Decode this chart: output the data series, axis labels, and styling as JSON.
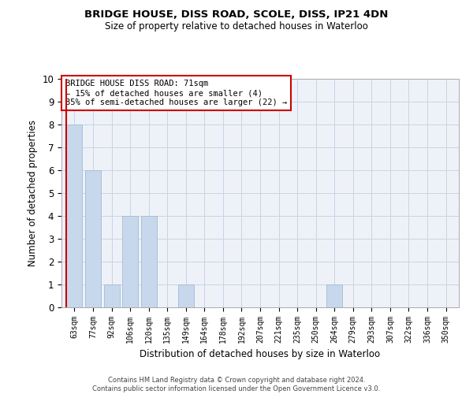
{
  "title": "BRIDGE HOUSE, DISS ROAD, SCOLE, DISS, IP21 4DN",
  "subtitle": "Size of property relative to detached houses in Waterloo",
  "xlabel": "Distribution of detached houses by size in Waterloo",
  "ylabel": "Number of detached properties",
  "categories": [
    "63sqm",
    "77sqm",
    "92sqm",
    "106sqm",
    "120sqm",
    "135sqm",
    "149sqm",
    "164sqm",
    "178sqm",
    "192sqm",
    "207sqm",
    "221sqm",
    "235sqm",
    "250sqm",
    "264sqm",
    "279sqm",
    "293sqm",
    "307sqm",
    "322sqm",
    "336sqm",
    "350sqm"
  ],
  "values": [
    8,
    6,
    1,
    4,
    4,
    0,
    1,
    0,
    0,
    0,
    0,
    0,
    0,
    0,
    1,
    0,
    0,
    0,
    0,
    0,
    0
  ],
  "bar_color": "#c8d8ec",
  "bar_edge_color": "#a8c0d8",
  "subject_line_color": "#cc0000",
  "subject_line_xindex": 0,
  "ylim": [
    0,
    10
  ],
  "yticks": [
    0,
    1,
    2,
    3,
    4,
    5,
    6,
    7,
    8,
    9,
    10
  ],
  "annotation_box_text": "BRIDGE HOUSE DISS ROAD: 71sqm\n← 15% of detached houses are smaller (4)\n85% of semi-detached houses are larger (22) →",
  "annotation_box_color": "#ffffff",
  "annotation_box_edge_color": "#cc0000",
  "footer_line1": "Contains HM Land Registry data © Crown copyright and database right 2024.",
  "footer_line2": "Contains public sector information licensed under the Open Government Licence v3.0.",
  "grid_color": "#c8d4e4",
  "background_color": "#eef2f8",
  "title_fontsize": 9,
  "subtitle_fontsize": 8.5,
  "ylabel_text": "Number of detached properties"
}
